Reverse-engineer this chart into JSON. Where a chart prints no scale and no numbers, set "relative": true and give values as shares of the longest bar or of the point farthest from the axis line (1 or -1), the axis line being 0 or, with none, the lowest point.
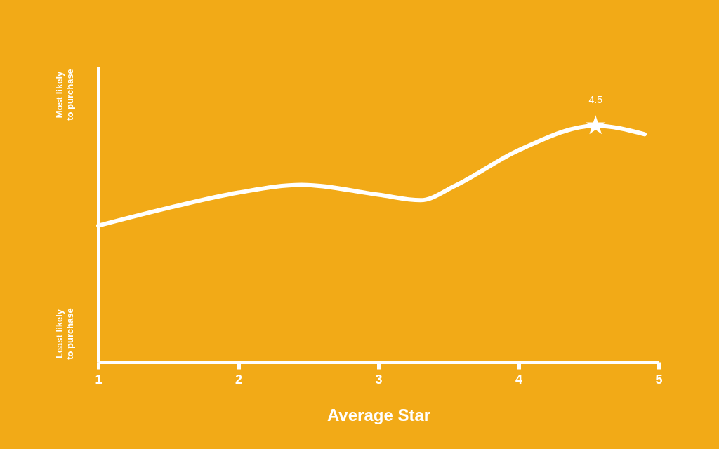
{
  "chart_data": {
    "type": "line",
    "xlabel": "Average Star",
    "relative": true,
    "xlim": [
      1,
      5
    ],
    "xticks": [
      1,
      2,
      3,
      4,
      5
    ],
    "grid": false,
    "marker": "none",
    "line_style": "solid",
    "series": [
      {
        "color": "#ffffff",
        "x": [
          1,
          1.5,
          2,
          2.45,
          3,
          3.3,
          3.55,
          4,
          4.55,
          4.9
        ],
        "values": [
          0.577,
          0.652,
          0.717,
          0.75,
          0.708,
          0.685,
          0.747,
          0.896,
          1.0,
          0.964
        ]
      },
      {
        "type": "scatter",
        "color": "#ffffff",
        "marker": "star",
        "x": [
          4.55
        ],
        "values": [
          1.0
        ]
      }
    ],
    "annotations": [
      "Most likely\nto purchase",
      "Least likely\nto purchase",
      {
        "text": "4.5",
        "x": 4.55,
        "y": 1.0
      }
    ]
  }
}
